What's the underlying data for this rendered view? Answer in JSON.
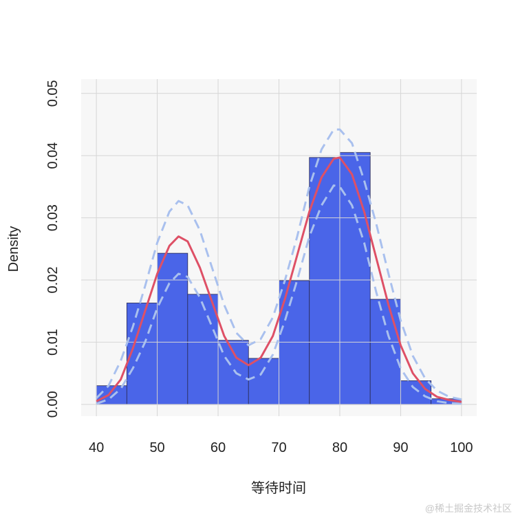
{
  "chart_data": {
    "type": "histogram",
    "xlabel": "等待时间",
    "ylabel": "Density",
    "bins": [
      40,
      45,
      50,
      55,
      60,
      65,
      70,
      75,
      80,
      85,
      90,
      95,
      100
    ],
    "values": [
      0.003,
      0.0163,
      0.0243,
      0.0177,
      0.0103,
      0.0074,
      0.0199,
      0.0397,
      0.0405,
      0.0169,
      0.0038,
      0.0009
    ],
    "color": "#4a65e8",
    "xlim": [
      37.5,
      102.5
    ],
    "ylim": [
      -0.0019,
      0.0523
    ],
    "xticks": [
      40,
      50,
      60,
      70,
      80,
      90,
      100
    ],
    "yticks": [
      {
        "value": 0,
        "label": "0.00"
      },
      0.01,
      0.02,
      0.03,
      0.04,
      0.05
    ],
    "grid": true,
    "lines": [
      {
        "color": "#a9c0ee",
        "dashed": true,
        "x": [
          40,
          42,
          44,
          46,
          48,
          50,
          52,
          53.5,
          55,
          57,
          59,
          61,
          63,
          65,
          67,
          69,
          71,
          73,
          75,
          77,
          79,
          80,
          82,
          84,
          86,
          88,
          90,
          92,
          94,
          96,
          98,
          100
        ],
        "values": [
          0.001,
          0.003,
          0.007,
          0.0125,
          0.019,
          0.026,
          0.031,
          0.0327,
          0.032,
          0.028,
          0.022,
          0.016,
          0.0115,
          0.0095,
          0.0105,
          0.014,
          0.02,
          0.027,
          0.035,
          0.041,
          0.0442,
          0.0442,
          0.042,
          0.036,
          0.029,
          0.021,
          0.0135,
          0.0078,
          0.0042,
          0.0022,
          0.0012,
          0.0008
        ]
      },
      {
        "color": "#a9c0ee",
        "dashed": true,
        "x": [
          40,
          42,
          44,
          46,
          48,
          50,
          52,
          53.5,
          55,
          57,
          59,
          61,
          63,
          65,
          67,
          69,
          71,
          73,
          75,
          77,
          79,
          80,
          82,
          84,
          86,
          88,
          90,
          92,
          94,
          96,
          98,
          100
        ],
        "values": [
          0.0001,
          0.0008,
          0.0025,
          0.0058,
          0.01,
          0.0155,
          0.0195,
          0.021,
          0.0205,
          0.0172,
          0.0125,
          0.0078,
          0.005,
          0.004,
          0.0048,
          0.008,
          0.0135,
          0.02,
          0.027,
          0.032,
          0.0352,
          0.035,
          0.032,
          0.026,
          0.018,
          0.011,
          0.0058,
          0.0028,
          0.0013,
          0.0005,
          0.0002,
          0.0001
        ]
      },
      {
        "color": "#de5066",
        "dashed": false,
        "x": [
          40,
          42,
          44,
          46,
          48,
          50,
          52,
          53.5,
          55,
          57,
          59,
          61,
          63,
          65,
          67,
          69,
          71,
          73,
          75,
          77,
          79,
          80,
          82,
          84,
          86,
          88,
          90,
          92,
          94,
          96,
          98,
          100
        ],
        "values": [
          0.0005,
          0.0015,
          0.004,
          0.009,
          0.015,
          0.021,
          0.0255,
          0.027,
          0.0262,
          0.022,
          0.0165,
          0.011,
          0.0075,
          0.0063,
          0.0075,
          0.011,
          0.017,
          0.024,
          0.031,
          0.0365,
          0.0395,
          0.0397,
          0.037,
          0.031,
          0.0235,
          0.016,
          0.0095,
          0.005,
          0.0025,
          0.0012,
          0.0007,
          0.0004
        ]
      }
    ]
  },
  "watermark": "@稀土掘金技术社区"
}
